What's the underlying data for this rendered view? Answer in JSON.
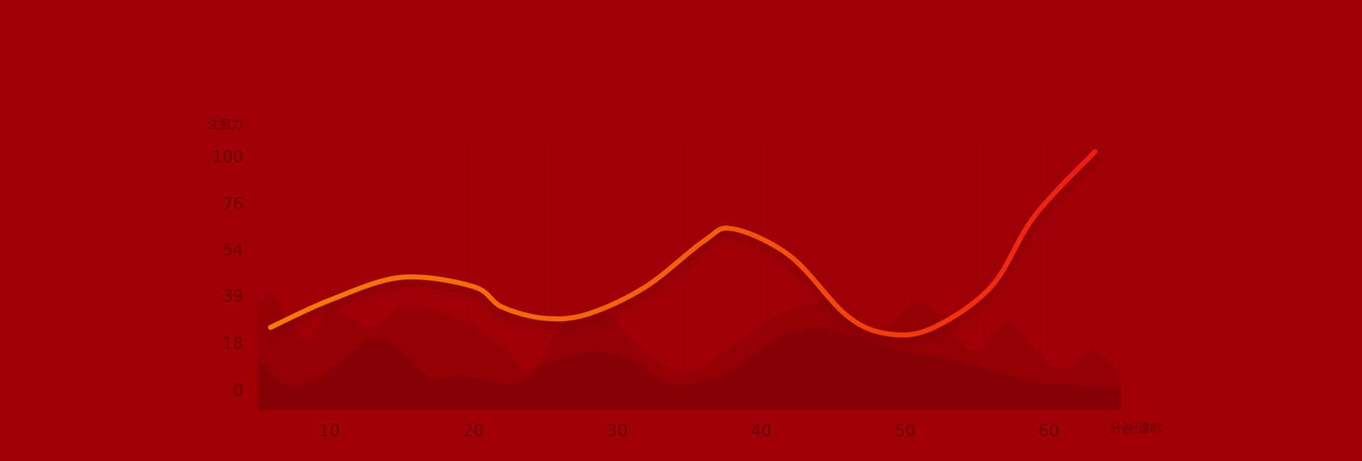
{
  "chart_data": {
    "type": "line",
    "ylabel": "注意力",
    "xlabel": "分钟/课时",
    "y_ticks": [
      "100",
      "76",
      "54",
      "39",
      "18",
      "0"
    ],
    "x_ticks": [
      "10",
      "20",
      "30",
      "40",
      "50",
      "60"
    ],
    "x_tick_values": [
      10,
      20,
      30,
      40,
      50,
      60
    ],
    "xlim": [
      5,
      65
    ],
    "ylim": [
      0,
      100
    ],
    "grid": "vertical",
    "colors": {
      "background": "#a00006",
      "grid": "#8f0004",
      "text": "#6b0000",
      "line_start": "#f47a10",
      "line_mid": "#f45a10",
      "line_end": "#ee1a12",
      "area_light": "#8c0006",
      "area_dark": "#820005"
    },
    "series": [
      {
        "name": "",
        "points": [
          [
            5.9,
            25
          ],
          [
            10,
            37
          ],
          [
            15,
            45
          ],
          [
            20,
            42
          ],
          [
            22,
            34
          ],
          [
            25,
            29
          ],
          [
            28,
            31
          ],
          [
            32,
            42
          ],
          [
            36,
            58
          ],
          [
            38,
            64
          ],
          [
            42,
            52
          ],
          [
            46,
            30
          ],
          [
            49,
            22
          ],
          [
            52,
            25
          ],
          [
            56,
            42
          ],
          [
            59,
            70
          ],
          [
            63.2,
            103
          ]
        ]
      }
    ],
    "background_areas": [
      {
        "points": [
          [
            5,
            33
          ],
          [
            6,
            40
          ],
          [
            7,
            30
          ],
          [
            8.5,
            20
          ],
          [
            10,
            33
          ],
          [
            11,
            31
          ],
          [
            13,
            25
          ],
          [
            15,
            34
          ],
          [
            17,
            33
          ],
          [
            20,
            26
          ],
          [
            22,
            17
          ],
          [
            24,
            8
          ],
          [
            26,
            25
          ],
          [
            28,
            34
          ],
          [
            30,
            27
          ],
          [
            32,
            15
          ],
          [
            34,
            8
          ],
          [
            36,
            9
          ],
          [
            39,
            22
          ],
          [
            42,
            33
          ],
          [
            45,
            36
          ],
          [
            47,
            23
          ],
          [
            49,
            27
          ],
          [
            51,
            37
          ],
          [
            53,
            25
          ],
          [
            55,
            15
          ],
          [
            57,
            28
          ],
          [
            58,
            23
          ],
          [
            60,
            10
          ],
          [
            61.5,
            9
          ],
          [
            63,
            16
          ],
          [
            65,
            6
          ]
        ]
      },
      {
        "points": [
          [
            5,
            13
          ],
          [
            7,
            2
          ],
          [
            9,
            4
          ],
          [
            11,
            12
          ],
          [
            13,
            20
          ],
          [
            15,
            15
          ],
          [
            17,
            5
          ],
          [
            19,
            6
          ],
          [
            21,
            4
          ],
          [
            23,
            3
          ],
          [
            25,
            10
          ],
          [
            28,
            15
          ],
          [
            31,
            12
          ],
          [
            33,
            4
          ],
          [
            35,
            2
          ],
          [
            38,
            8
          ],
          [
            41,
            20
          ],
          [
            44,
            25
          ],
          [
            47,
            20
          ],
          [
            50,
            15
          ],
          [
            53,
            12
          ],
          [
            56,
            8
          ],
          [
            59,
            3
          ],
          [
            62,
            2
          ],
          [
            65,
            1
          ]
        ]
      }
    ]
  }
}
